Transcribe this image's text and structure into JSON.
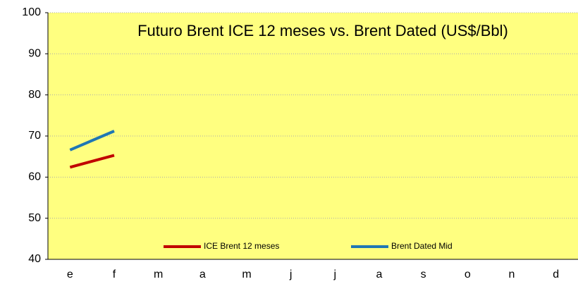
{
  "chart_data": {
    "type": "line",
    "title": "Futuro Brent ICE 12 meses vs. Brent Dated (US$/Bbl)",
    "categories": [
      "e",
      "f",
      "m",
      "a",
      "m",
      "j",
      "j",
      "a",
      "s",
      "o",
      "n",
      "d"
    ],
    "series": [
      {
        "name": "ICE Brent 12 meses",
        "color": "#c00000",
        "values": [
          62.4,
          65.3,
          null,
          null,
          null,
          null,
          null,
          null,
          null,
          null,
          null,
          null
        ]
      },
      {
        "name": "Brent Dated Mid",
        "color": "#1f77b4",
        "values": [
          66.6,
          71.2,
          null,
          null,
          null,
          null,
          null,
          null,
          null,
          null,
          null,
          null
        ]
      }
    ],
    "ylim": [
      40,
      100
    ],
    "yticks": [
      40,
      50,
      60,
      70,
      80,
      90,
      100
    ],
    "grid": true,
    "legend": "bottom",
    "background": "#ffff80"
  }
}
